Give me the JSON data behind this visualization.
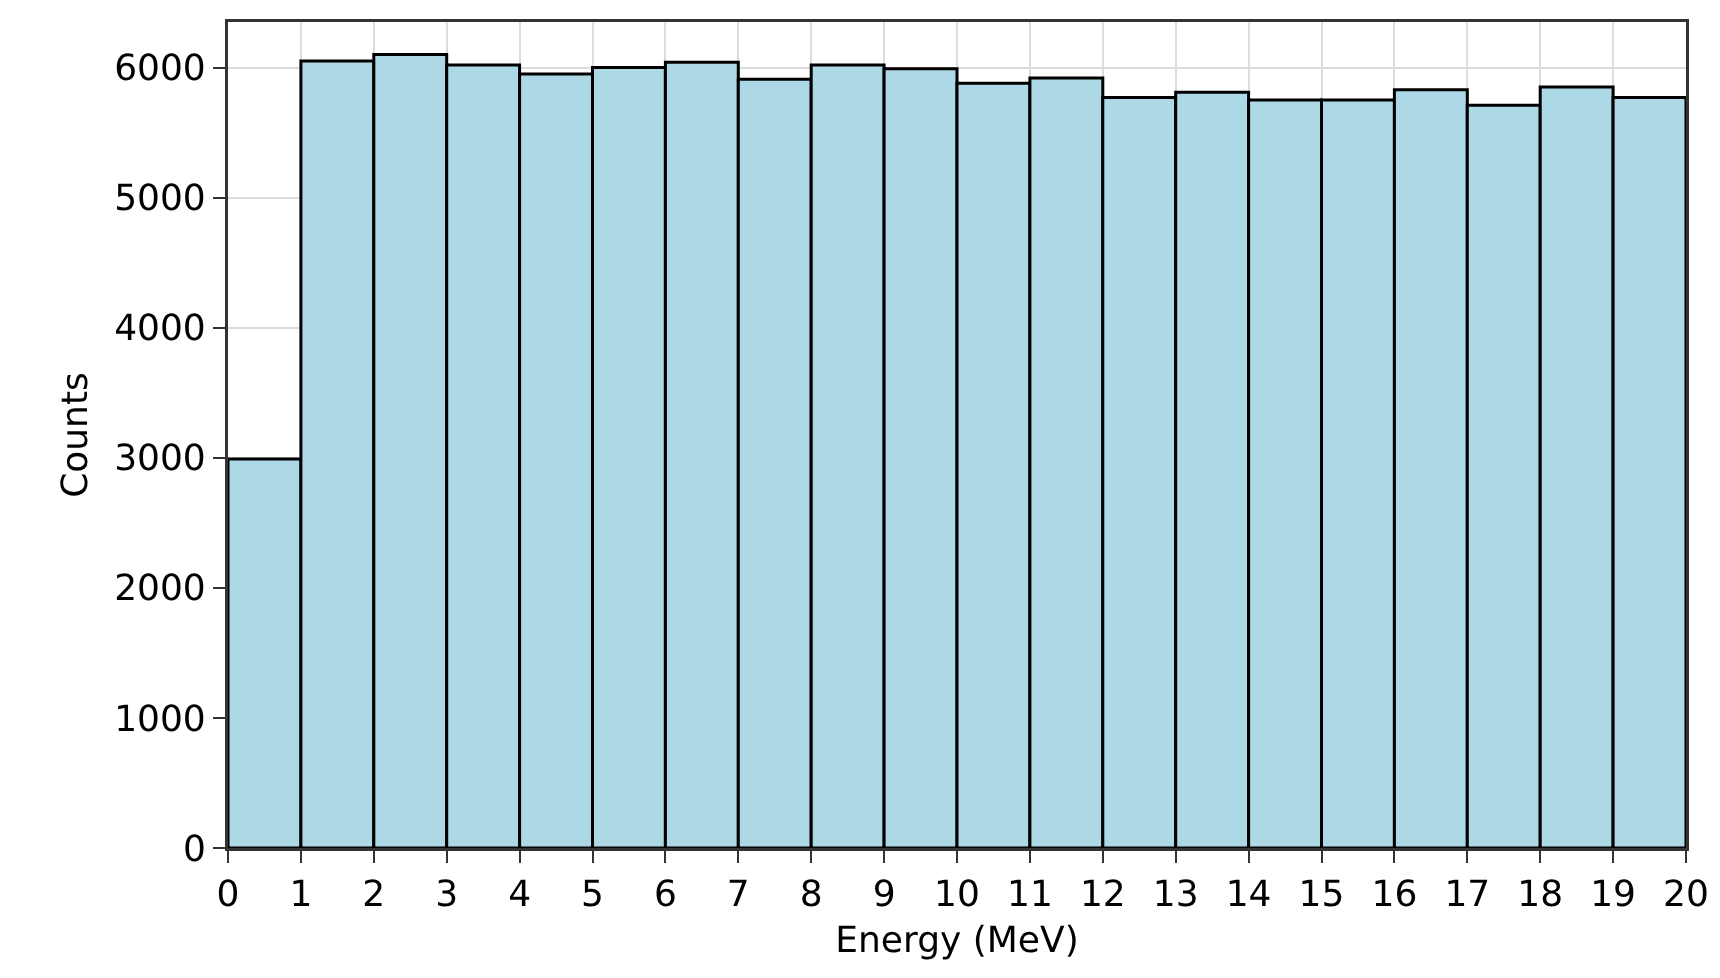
{
  "chart_data": {
    "type": "histogram",
    "xlabel": "Energy (MeV)",
    "ylabel": "Counts",
    "bins": [
      0,
      1,
      2,
      3,
      4,
      5,
      6,
      7,
      8,
      9,
      10,
      11,
      12,
      13,
      14,
      15,
      16,
      17,
      18,
      19,
      20
    ],
    "values": [
      2990,
      6050,
      6100,
      6020,
      5950,
      6000,
      6040,
      5910,
      6020,
      5990,
      5880,
      5920,
      5770,
      5810,
      5750,
      5750,
      5830,
      5710,
      5850,
      5770
    ],
    "color": "#add8e6",
    "xlim": [
      0,
      20
    ],
    "xticks": [
      0,
      1,
      2,
      3,
      4,
      5,
      6,
      7,
      8,
      9,
      10,
      11,
      12,
      13,
      14,
      15,
      16,
      17,
      18,
      19,
      20
    ],
    "ylim": [
      0,
      6350
    ],
    "yticks": [
      0,
      1000,
      2000,
      3000,
      4000,
      5000,
      6000
    ],
    "grid": true
  }
}
